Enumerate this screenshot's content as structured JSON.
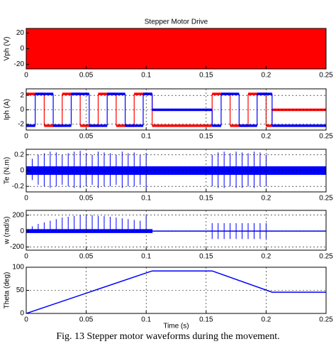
{
  "chart_data": [
    {
      "type": "line",
      "title": "Stepper Motor Drive",
      "ylabel": "Vph (V)",
      "xlim": [
        0,
        0.25
      ],
      "xticks": [
        0,
        0.05,
        0.1,
        0.15,
        0.2,
        0.25
      ],
      "ylim": [
        -26,
        26
      ],
      "yticks": [
        -20,
        0,
        20
      ],
      "grid": false,
      "series": [
        {
          "type": "band",
          "color": "#ff0000",
          "x": [
            0,
            0.25
          ],
          "upper": [
            30,
            30
          ],
          "lower": [
            -30,
            -30
          ]
        }
      ]
    },
    {
      "type": "line",
      "ylabel": "Iph (A)",
      "xlim": [
        0,
        0.25
      ],
      "xticks": [
        0,
        0.05,
        0.1,
        0.15,
        0.2,
        0.25
      ],
      "ylim": [
        -2.8,
        2.9
      ],
      "yticks": [
        -2,
        0,
        2
      ],
      "grid": true,
      "series": [
        {
          "type": "line",
          "step": "post",
          "color": "#ff0000",
          "x": [
            0,
            0.015,
            0.03,
            0.045,
            0.06,
            0.075,
            0.09,
            0.105,
            0.155,
            0.17,
            0.185,
            0.2,
            0.205,
            0.25
          ],
          "values": [
            2.2,
            -2.2,
            2.2,
            -2.2,
            2.2,
            -2.2,
            2.2,
            -2.2,
            2.2,
            -2.2,
            2.2,
            -2.2,
            0,
            0
          ]
        },
        {
          "type": "line",
          "step": "post",
          "color": "#0000ff",
          "x": [
            0,
            0.0075,
            0.0225,
            0.0375,
            0.0525,
            0.0675,
            0.0825,
            0.0975,
            0.105,
            0.155,
            0.1625,
            0.1775,
            0.1925,
            0.205,
            0.25
          ],
          "values": [
            -2.2,
            2.2,
            -2.2,
            2.2,
            -2.2,
            2.2,
            -2.2,
            2.2,
            0,
            -2.2,
            2.2,
            -2.2,
            2.2,
            -2.2,
            -2.2
          ]
        }
      ]
    },
    {
      "type": "line",
      "ylabel": "Te (N.m)",
      "xlim": [
        0,
        0.25
      ],
      "xticks": [
        0,
        0.05,
        0.1,
        0.15,
        0.2,
        0.25
      ],
      "ylim": [
        -0.27,
        0.27
      ],
      "yticks": [
        -0.2,
        0,
        0.2
      ],
      "grid": true,
      "series": [
        {
          "type": "band",
          "color": "#0000ff",
          "x": [
            0,
            0.25
          ],
          "upper": [
            0.05,
            0.05
          ],
          "lower": [
            -0.05,
            -0.05
          ]
        },
        {
          "type": "spikes",
          "color": "#0000ff",
          "x": [
            0.005,
            0.01,
            0.015,
            0.02,
            0.025,
            0.03,
            0.035,
            0.04,
            0.045,
            0.05,
            0.055,
            0.06,
            0.065,
            0.07,
            0.075,
            0.08,
            0.085,
            0.09,
            0.095,
            0.1,
            0.155,
            0.16,
            0.165,
            0.17,
            0.175,
            0.18,
            0.185,
            0.19,
            0.195,
            0.2
          ],
          "upper": [
            0.15,
            0.2,
            0.22,
            0.24,
            0.23,
            0.2,
            0.22,
            0.24,
            0.25,
            0.22,
            0.2,
            0.24,
            0.23,
            0.22,
            0.2,
            0.24,
            0.22,
            0.23,
            0.2,
            0.22,
            0.2,
            0.23,
            0.24,
            0.22,
            0.24,
            0.23,
            0.22,
            0.24,
            0.23,
            0.2
          ],
          "lower": [
            -0.12,
            -0.18,
            -0.2,
            -0.22,
            -0.2,
            -0.18,
            -0.2,
            -0.22,
            -0.22,
            -0.2,
            -0.18,
            -0.22,
            -0.2,
            -0.2,
            -0.18,
            -0.22,
            -0.2,
            -0.2,
            -0.18,
            -0.24,
            -0.2,
            -0.22,
            -0.22,
            -0.2,
            -0.22,
            -0.22,
            -0.2,
            -0.22,
            -0.2,
            -0.2
          ]
        }
      ]
    },
    {
      "type": "line",
      "ylabel": "w (rad/s)",
      "xlim": [
        0,
        0.25
      ],
      "xticks": [
        0,
        0.05,
        0.1,
        0.15,
        0.2,
        0.25
      ],
      "ylim": [
        -240,
        260
      ],
      "yticks": [
        -200,
        0,
        200
      ],
      "grid": true,
      "series": [
        {
          "type": "band",
          "color": "#0000ff",
          "x": [
            0,
            0.105
          ],
          "upper": [
            20,
            20
          ],
          "lower": [
            -20,
            -20
          ]
        },
        {
          "type": "line",
          "color": "#0000ff",
          "x": [
            0.105,
            0.25
          ],
          "values": [
            0,
            0
          ]
        },
        {
          "type": "spikes",
          "color": "#0000ff",
          "x": [
            0.005,
            0.01,
            0.015,
            0.02,
            0.025,
            0.03,
            0.035,
            0.04,
            0.045,
            0.05,
            0.055,
            0.06,
            0.065,
            0.07,
            0.075,
            0.08,
            0.085,
            0.09,
            0.095,
            0.1,
            0.155,
            0.16,
            0.165,
            0.17,
            0.175,
            0.18,
            0.185,
            0.19,
            0.195,
            0.2
          ],
          "upper": [
            60,
            90,
            110,
            130,
            150,
            170,
            180,
            190,
            200,
            200,
            200,
            190,
            190,
            180,
            170,
            160,
            150,
            140,
            130,
            200,
            100,
            100,
            100,
            100,
            100,
            100,
            100,
            100,
            100,
            100
          ],
          "lower": [
            -20,
            -20,
            -20,
            -20,
            -20,
            -20,
            -20,
            -20,
            -20,
            -20,
            -20,
            -20,
            -20,
            -20,
            -20,
            -20,
            -20,
            -20,
            -20,
            -20,
            -100,
            -100,
            -100,
            -100,
            -100,
            -100,
            -100,
            -100,
            -100,
            -100
          ]
        }
      ]
    },
    {
      "type": "line",
      "ylabel": "Theta (deg)",
      "xlabel": "Time (s)",
      "xlim": [
        0,
        0.25
      ],
      "xticks": [
        0,
        0.05,
        0.1,
        0.15,
        0.2,
        0.25
      ],
      "ylim": [
        0,
        100
      ],
      "yticks": [
        0,
        50,
        100
      ],
      "grid": true,
      "series": [
        {
          "type": "line",
          "color": "#0000ff",
          "x": [
            0,
            0.105,
            0.155,
            0.205,
            0.25
          ],
          "values": [
            0,
            92,
            92,
            46,
            46
          ]
        }
      ]
    }
  ],
  "caption": "Fig. 13  Stepper motor waveforms during the movement."
}
